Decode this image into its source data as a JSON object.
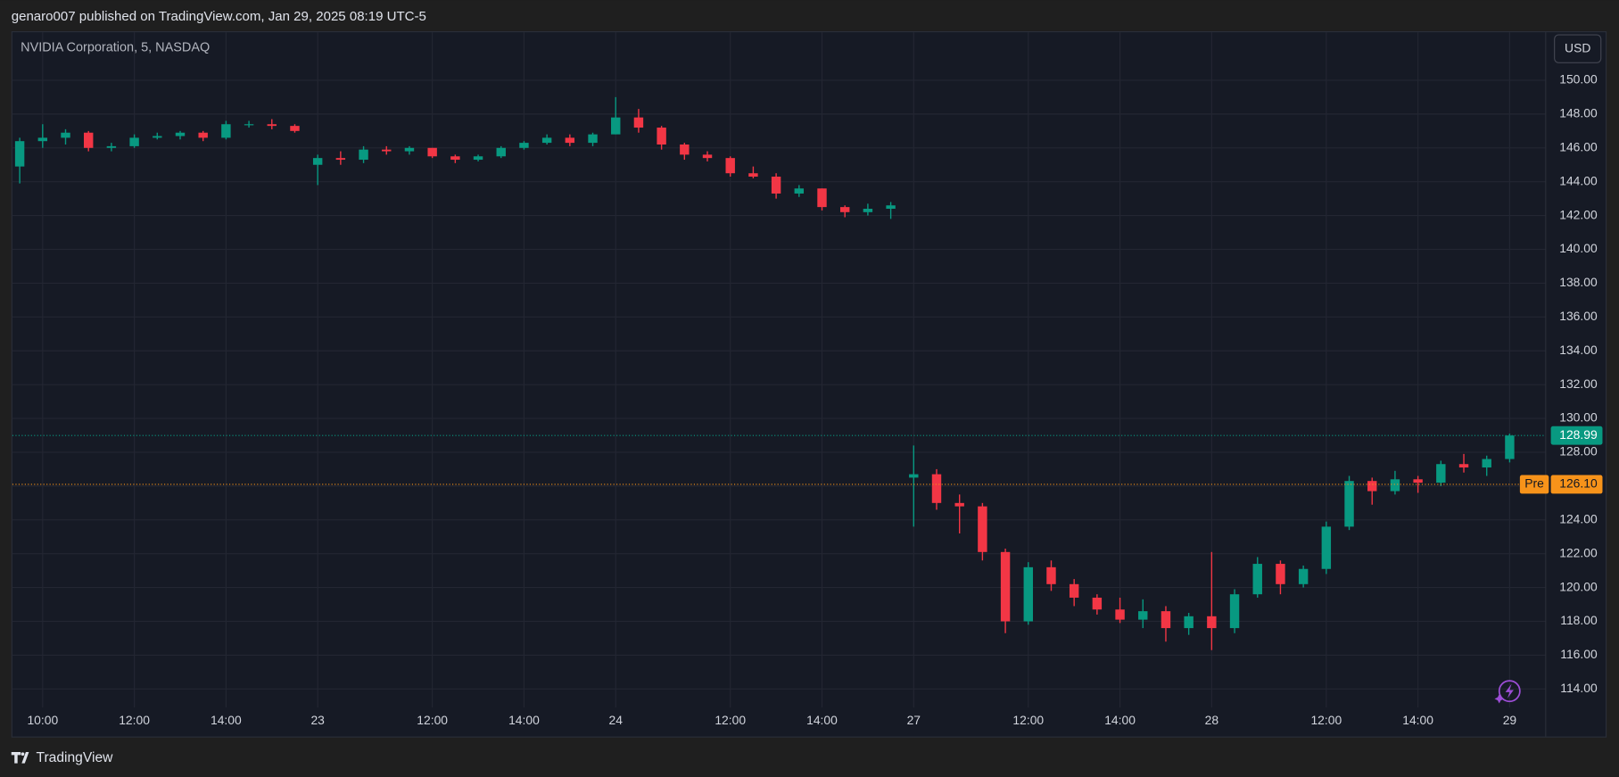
{
  "header": {
    "text": "genaro007 published on TradingView.com, Jan 29, 2025 08:19 UTC-5"
  },
  "footer": {
    "brand": "TradingView"
  },
  "chart_data": {
    "type": "candlestick",
    "title": "NVIDIA Corporation, 5, NASDAQ",
    "currency": "USD",
    "up_color": "#089981",
    "down_color": "#f23645",
    "grid": true,
    "categories": [
      null,
      "10:00",
      null,
      null,
      null,
      "12:00",
      null,
      null,
      null,
      "14:00",
      null,
      null,
      null,
      "23",
      null,
      null,
      null,
      null,
      "12:00",
      null,
      null,
      null,
      "14:00",
      null,
      null,
      null,
      "24",
      null,
      null,
      null,
      null,
      "12:00",
      null,
      null,
      null,
      "14:00",
      null,
      null,
      null,
      "27",
      null,
      null,
      null,
      null,
      "12:00",
      null,
      null,
      null,
      "14:00",
      null,
      null,
      null,
      "28",
      null,
      null,
      null,
      null,
      "12:00",
      null,
      null,
      null,
      "14:00",
      null,
      null,
      null,
      "29"
    ],
    "open": [
      144.9,
      146.4,
      146.6,
      146.9,
      146.0,
      146.1,
      146.6,
      146.7,
      146.9,
      146.6,
      147.4,
      147.4,
      147.3,
      145.0,
      145.4,
      145.3,
      145.9,
      145.8,
      146.0,
      145.5,
      145.3,
      145.5,
      146.0,
      146.3,
      146.6,
      146.3,
      146.8,
      147.8,
      147.2,
      146.2,
      145.6,
      145.4,
      144.5,
      144.3,
      143.3,
      143.6,
      142.5,
      142.2,
      142.4,
      126.5,
      126.7,
      125.0,
      124.8,
      122.1,
      118.0,
      121.2,
      120.2,
      119.4,
      118.7,
      118.1,
      118.6,
      117.6,
      118.3,
      117.6,
      119.6,
      121.4,
      120.2,
      121.1,
      123.6,
      126.3,
      125.7,
      126.4,
      126.2,
      127.3,
      127.1,
      127.6
    ],
    "high": [
      146.6,
      147.4,
      147.1,
      147.0,
      146.3,
      146.8,
      146.9,
      147.0,
      147.0,
      147.6,
      147.6,
      147.7,
      147.4,
      145.6,
      145.8,
      146.1,
      146.1,
      146.1,
      146.0,
      145.6,
      145.6,
      146.1,
      146.4,
      146.8,
      146.8,
      146.9,
      149.0,
      148.3,
      147.3,
      146.3,
      145.8,
      145.5,
      144.9,
      144.5,
      143.8,
      143.6,
      142.6,
      142.7,
      142.8,
      128.4,
      127.0,
      125.5,
      125.0,
      122.3,
      121.5,
      121.6,
      120.5,
      119.6,
      119.4,
      119.3,
      118.9,
      118.5,
      122.1,
      119.9,
      121.8,
      121.6,
      121.3,
      123.9,
      126.6,
      126.5,
      126.9,
      126.6,
      127.5,
      127.9,
      127.8,
      129.1
    ],
    "low": [
      143.9,
      146.0,
      146.2,
      145.8,
      145.8,
      146.0,
      146.5,
      146.5,
      146.4,
      146.5,
      147.2,
      147.1,
      146.9,
      143.8,
      145.0,
      145.1,
      145.6,
      145.6,
      145.4,
      145.1,
      145.2,
      145.4,
      145.9,
      146.2,
      146.1,
      146.1,
      146.8,
      146.9,
      145.9,
      145.3,
      145.2,
      144.3,
      144.2,
      143.0,
      143.1,
      142.3,
      141.9,
      142.0,
      141.8,
      123.6,
      124.6,
      123.2,
      121.6,
      117.3,
      117.8,
      119.8,
      118.9,
      118.4,
      117.9,
      117.6,
      116.8,
      117.2,
      116.3,
      117.3,
      119.4,
      119.6,
      120.0,
      120.8,
      123.4,
      124.9,
      125.5,
      125.6,
      126.0,
      126.8,
      126.6,
      127.4
    ],
    "close": [
      146.4,
      146.6,
      146.9,
      146.0,
      146.1,
      146.6,
      146.7,
      146.9,
      146.6,
      147.4,
      147.4,
      147.3,
      147.0,
      145.4,
      145.3,
      145.9,
      145.8,
      146.0,
      145.5,
      145.3,
      145.5,
      146.0,
      146.3,
      146.6,
      146.3,
      146.8,
      147.8,
      147.2,
      146.2,
      145.6,
      145.4,
      144.5,
      144.3,
      143.3,
      143.6,
      142.5,
      142.2,
      142.4,
      142.6,
      126.7,
      125.0,
      124.8,
      122.1,
      118.0,
      121.2,
      120.2,
      119.4,
      118.7,
      118.1,
      118.6,
      117.6,
      118.3,
      117.6,
      119.6,
      121.4,
      120.2,
      121.1,
      123.6,
      126.3,
      125.7,
      126.4,
      126.2,
      127.3,
      127.1,
      127.6,
      128.99
    ],
    "ylim": [
      112.9,
      152.9
    ],
    "yticks": [
      {
        "value": 114,
        "label": "114.00"
      },
      {
        "value": 116,
        "label": "116.00"
      },
      {
        "value": 118,
        "label": "118.00"
      },
      {
        "value": 120,
        "label": "120.00"
      },
      {
        "value": 122,
        "label": "122.00"
      },
      {
        "value": 124,
        "label": "124.00"
      },
      {
        "value": 126,
        "label": "126.00"
      },
      {
        "value": 128,
        "label": "128.00"
      },
      {
        "value": 130,
        "label": "130.00"
      },
      {
        "value": 132,
        "label": "132.00"
      },
      {
        "value": 134,
        "label": "134.00"
      },
      {
        "value": 136,
        "label": "136.00"
      },
      {
        "value": 138,
        "label": "138.00"
      },
      {
        "value": 140,
        "label": "140.00"
      },
      {
        "value": 142,
        "label": "142.00"
      },
      {
        "value": 144,
        "label": "144.00"
      },
      {
        "value": 146,
        "label": "146.00"
      },
      {
        "value": 148,
        "label": "148.00"
      },
      {
        "value": 150,
        "label": "150.00"
      }
    ],
    "last_price": 128.99,
    "last_price_color": "#089981",
    "premarket": {
      "label": "Pre",
      "price": {
        "value": 126.1,
        "label": "126.10"
      },
      "color": "#f7931a"
    }
  }
}
